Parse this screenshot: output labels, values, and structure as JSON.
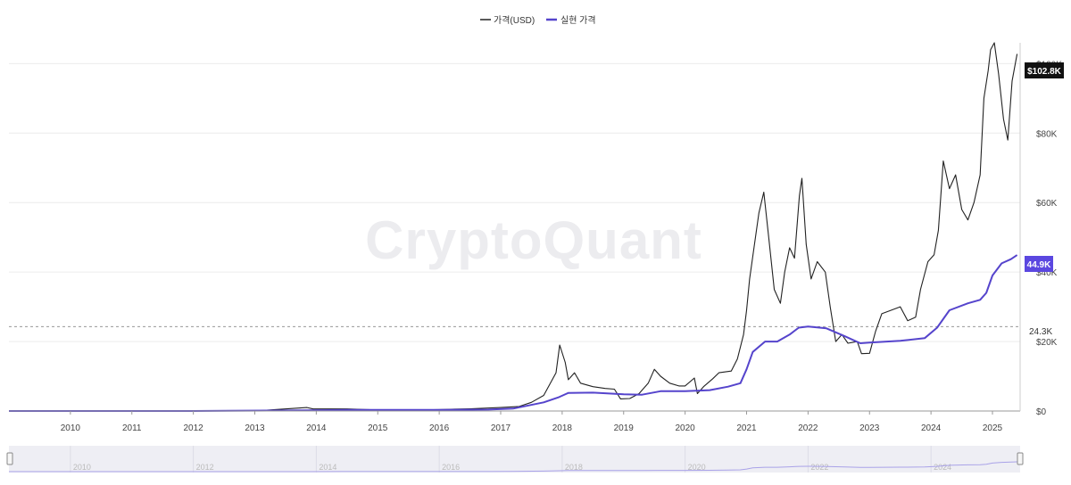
{
  "legend": {
    "price_label": "가격(USD)",
    "realized_label": "실현 가격",
    "price_color": "#222222",
    "realized_color": "#5544cc"
  },
  "watermark": "CryptoQuant",
  "badges": {
    "price": "$102.8K",
    "realized": "44.9K",
    "reference": "24.3K"
  },
  "chart_data": {
    "type": "line",
    "title": "",
    "xlabel": "",
    "ylabel": "",
    "xlim": [
      2009.0,
      2025.45
    ],
    "ylim": [
      0,
      106000
    ],
    "grid": true,
    "legend_position": "top-center",
    "x_ticks": [
      "2010",
      "2011",
      "2012",
      "2013",
      "2014",
      "2015",
      "2016",
      "2017",
      "2018",
      "2019",
      "2020",
      "2021",
      "2022",
      "2023",
      "2024",
      "2025"
    ],
    "y_ticks": [
      {
        "value": 0,
        "label": "$0"
      },
      {
        "value": 20000,
        "label": "$20K"
      },
      {
        "value": 40000,
        "label": "$40K"
      },
      {
        "value": 60000,
        "label": "$60K"
      },
      {
        "value": 80000,
        "label": "$80K"
      },
      {
        "value": 100000,
        "label": "$100K"
      }
    ],
    "reference_line": {
      "value": 24300,
      "label": "24.3K"
    },
    "series": [
      {
        "name": "가격(USD)",
        "color": "#222222",
        "points": [
          [
            2009.0,
            0
          ],
          [
            2010.5,
            0
          ],
          [
            2012.0,
            10
          ],
          [
            2013.0,
            20
          ],
          [
            2013.85,
            1000
          ],
          [
            2013.95,
            600
          ],
          [
            2014.5,
            600
          ],
          [
            2015.0,
            300
          ],
          [
            2015.5,
            250
          ],
          [
            2016.0,
            400
          ],
          [
            2016.5,
            650
          ],
          [
            2017.0,
            1000
          ],
          [
            2017.3,
            1300
          ],
          [
            2017.5,
            2500
          ],
          [
            2017.7,
            4500
          ],
          [
            2017.9,
            11000
          ],
          [
            2017.96,
            19000
          ],
          [
            2018.05,
            14000
          ],
          [
            2018.1,
            9000
          ],
          [
            2018.2,
            11000
          ],
          [
            2018.3,
            8000
          ],
          [
            2018.5,
            7000
          ],
          [
            2018.7,
            6500
          ],
          [
            2018.85,
            6300
          ],
          [
            2018.95,
            3500
          ],
          [
            2019.1,
            3600
          ],
          [
            2019.25,
            5000
          ],
          [
            2019.4,
            8000
          ],
          [
            2019.5,
            12000
          ],
          [
            2019.6,
            10000
          ],
          [
            2019.75,
            8000
          ],
          [
            2019.9,
            7200
          ],
          [
            2020.0,
            7200
          ],
          [
            2020.15,
            9500
          ],
          [
            2020.2,
            5000
          ],
          [
            2020.3,
            7000
          ],
          [
            2020.45,
            9300
          ],
          [
            2020.55,
            11000
          ],
          [
            2020.75,
            11500
          ],
          [
            2020.85,
            15000
          ],
          [
            2020.95,
            22000
          ],
          [
            2021.0,
            29000
          ],
          [
            2021.05,
            38000
          ],
          [
            2021.12,
            47000
          ],
          [
            2021.2,
            57000
          ],
          [
            2021.28,
            63000
          ],
          [
            2021.36,
            50000
          ],
          [
            2021.45,
            35000
          ],
          [
            2021.55,
            31000
          ],
          [
            2021.62,
            40000
          ],
          [
            2021.7,
            47000
          ],
          [
            2021.78,
            44000
          ],
          [
            2021.86,
            62000
          ],
          [
            2021.9,
            67000
          ],
          [
            2021.97,
            48000
          ],
          [
            2022.05,
            38000
          ],
          [
            2022.15,
            43000
          ],
          [
            2022.28,
            40000
          ],
          [
            2022.36,
            30000
          ],
          [
            2022.45,
            20000
          ],
          [
            2022.55,
            22000
          ],
          [
            2022.65,
            19500
          ],
          [
            2022.8,
            20000
          ],
          [
            2022.87,
            16500
          ],
          [
            2023.0,
            16600
          ],
          [
            2023.1,
            23000
          ],
          [
            2023.2,
            28000
          ],
          [
            2023.35,
            29000
          ],
          [
            2023.5,
            30000
          ],
          [
            2023.62,
            26000
          ],
          [
            2023.75,
            27000
          ],
          [
            2023.83,
            35000
          ],
          [
            2023.95,
            43000
          ],
          [
            2024.05,
            45000
          ],
          [
            2024.12,
            52000
          ],
          [
            2024.2,
            72000
          ],
          [
            2024.3,
            64000
          ],
          [
            2024.4,
            68000
          ],
          [
            2024.5,
            58000
          ],
          [
            2024.6,
            55000
          ],
          [
            2024.7,
            60000
          ],
          [
            2024.8,
            68000
          ],
          [
            2024.86,
            90000
          ],
          [
            2024.93,
            98000
          ],
          [
            2024.97,
            104000
          ],
          [
            2025.03,
            106000
          ],
          [
            2025.1,
            97000
          ],
          [
            2025.18,
            84000
          ],
          [
            2025.25,
            78000
          ],
          [
            2025.32,
            95000
          ],
          [
            2025.4,
            102800
          ]
        ]
      },
      {
        "name": "실현 가격",
        "color": "#5544cc",
        "points": [
          [
            2009.0,
            0
          ],
          [
            2012.0,
            5
          ],
          [
            2013.9,
            200
          ],
          [
            2014.5,
            300
          ],
          [
            2016.0,
            300
          ],
          [
            2016.8,
            400
          ],
          [
            2017.2,
            700
          ],
          [
            2017.7,
            2500
          ],
          [
            2017.95,
            4000
          ],
          [
            2018.1,
            5200
          ],
          [
            2018.5,
            5300
          ],
          [
            2019.0,
            4800
          ],
          [
            2019.3,
            4700
          ],
          [
            2019.6,
            5700
          ],
          [
            2020.0,
            5700
          ],
          [
            2020.4,
            6000
          ],
          [
            2020.7,
            7000
          ],
          [
            2020.9,
            8000
          ],
          [
            2021.0,
            12000
          ],
          [
            2021.1,
            17000
          ],
          [
            2021.3,
            20000
          ],
          [
            2021.5,
            20000
          ],
          [
            2021.7,
            22000
          ],
          [
            2021.85,
            24000
          ],
          [
            2022.0,
            24300
          ],
          [
            2022.3,
            23800
          ],
          [
            2022.6,
            21500
          ],
          [
            2022.85,
            19500
          ],
          [
            2023.0,
            19700
          ],
          [
            2023.5,
            20200
          ],
          [
            2023.9,
            21000
          ],
          [
            2024.1,
            24000
          ],
          [
            2024.3,
            29000
          ],
          [
            2024.6,
            31000
          ],
          [
            2024.8,
            32000
          ],
          [
            2024.9,
            34000
          ],
          [
            2025.0,
            39000
          ],
          [
            2025.15,
            42500
          ],
          [
            2025.3,
            43700
          ],
          [
            2025.4,
            44900
          ]
        ]
      }
    ]
  }
}
